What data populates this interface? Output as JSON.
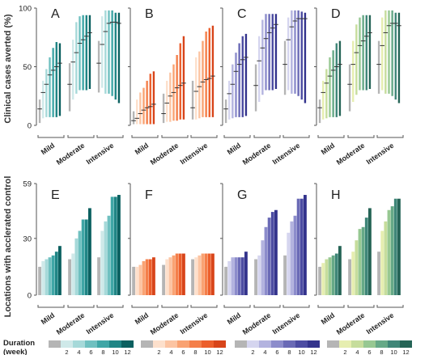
{
  "y_axis_labels": {
    "top": "Clinical cases averted (%)",
    "bottom": "Locations with acclerated control"
  },
  "top_ticks": [
    "0",
    "50",
    "100"
  ],
  "bottom_ticks": [
    "0",
    "30",
    "59"
  ],
  "groups": [
    "Mild",
    "Moderate",
    "Intensive"
  ],
  "legend": {
    "title": "Duration\n(week)",
    "durations": [
      "2",
      "4",
      "6",
      "8",
      "10",
      "12"
    ]
  },
  "palettes": {
    "A": [
      "#b5b5b5",
      "#cfe9e9",
      "#a6d9d9",
      "#6fc0c0",
      "#3fa6a6",
      "#1f8585",
      "#0b6060"
    ],
    "B": [
      "#b5b5b5",
      "#fde0cc",
      "#fcc4a2",
      "#f9a272",
      "#f47f4a",
      "#ec5f2c",
      "#d8451a"
    ],
    "C": [
      "#b5b5b5",
      "#d5d5ef",
      "#b3b3df",
      "#8c8ccb",
      "#6a6ab6",
      "#4c4ca2",
      "#33338c"
    ],
    "D": [
      "#b5b5b5",
      "#e6eeb0",
      "#c6dd9c",
      "#97c892",
      "#66a987",
      "#3f8678",
      "#256456"
    ]
  },
  "chart_data": [
    {
      "panel": "A",
      "type": "errorbar",
      "ylim": [
        0,
        100
      ],
      "categories": [
        "Mild",
        "Moderate",
        "Intensive"
      ],
      "series": [
        {
          "name": "0",
          "mid": [
            14,
            35,
            53
          ],
          "low": [
            2,
            12,
            28
          ],
          "high": [
            22,
            53,
            72
          ]
        },
        {
          "name": "2",
          "mid": [
            28,
            54,
            69
          ],
          "low": [
            6,
            22,
            32
          ],
          "high": [
            38,
            73,
            93
          ]
        },
        {
          "name": "4",
          "mid": [
            35,
            62,
            80
          ],
          "low": [
            7,
            27,
            27
          ],
          "high": [
            48,
            88,
            98
          ]
        },
        {
          "name": "6",
          "mid": [
            43,
            70,
            87
          ],
          "low": [
            7,
            30,
            27
          ],
          "high": [
            58,
            93,
            98
          ]
        },
        {
          "name": "8",
          "mid": [
            47,
            73,
            88
          ],
          "low": [
            7,
            30,
            25
          ],
          "high": [
            66,
            94,
            98
          ]
        },
        {
          "name": "10",
          "mid": [
            50,
            76,
            88
          ],
          "low": [
            7,
            30,
            22
          ],
          "high": [
            71,
            94,
            96
          ]
        },
        {
          "name": "12",
          "mid": [
            53,
            79,
            87
          ],
          "low": [
            8,
            31,
            19
          ],
          "high": [
            70,
            94,
            96
          ]
        }
      ]
    },
    {
      "panel": "B",
      "type": "errorbar",
      "ylim": [
        0,
        100
      ],
      "categories": [
        "Mild",
        "Moderate",
        "Intensive"
      ],
      "series": [
        {
          "name": "0",
          "mid": [
            4,
            10,
            15
          ],
          "low": [
            1,
            2,
            5
          ],
          "high": [
            12,
            27,
            38
          ]
        },
        {
          "name": "2",
          "mid": [
            6,
            19,
            29
          ],
          "low": [
            1,
            3,
            5
          ],
          "high": [
            22,
            38,
            58
          ]
        },
        {
          "name": "4",
          "mid": [
            10,
            25,
            33
          ],
          "low": [
            1,
            3,
            6
          ],
          "high": [
            28,
            45,
            63
          ]
        },
        {
          "name": "6",
          "mid": [
            13,
            28,
            37
          ],
          "low": [
            1,
            4,
            7
          ],
          "high": [
            32,
            52,
            72
          ]
        },
        {
          "name": "8",
          "mid": [
            15,
            32,
            39
          ],
          "low": [
            1,
            4,
            7
          ],
          "high": [
            38,
            60,
            80
          ]
        },
        {
          "name": "10",
          "mid": [
            16,
            34,
            40
          ],
          "low": [
            1,
            5,
            7
          ],
          "high": [
            44,
            70,
            83
          ]
        },
        {
          "name": "12",
          "mid": [
            18,
            36,
            42
          ],
          "low": [
            1,
            5,
            7
          ],
          "high": [
            46,
            76,
            85
          ]
        }
      ]
    },
    {
      "panel": "C",
      "type": "errorbar",
      "ylim": [
        0,
        100
      ],
      "categories": [
        "Mild",
        "Moderate",
        "Intensive"
      ],
      "series": [
        {
          "name": "0",
          "mid": [
            14,
            34,
            52
          ],
          "low": [
            2,
            12,
            26
          ],
          "high": [
            22,
            52,
            72
          ]
        },
        {
          "name": "2",
          "mid": [
            27,
            55,
            73
          ],
          "low": [
            5,
            20,
            30
          ],
          "high": [
            38,
            76,
            92
          ]
        },
        {
          "name": "4",
          "mid": [
            35,
            66,
            84
          ],
          "low": [
            6,
            26,
            27
          ],
          "high": [
            52,
            90,
            98
          ]
        },
        {
          "name": "6",
          "mid": [
            46,
            74,
            89
          ],
          "low": [
            7,
            30,
            27
          ],
          "high": [
            62,
            95,
            98
          ]
        },
        {
          "name": "8",
          "mid": [
            52,
            79,
            91
          ],
          "low": [
            7,
            30,
            25
          ],
          "high": [
            70,
            95,
            98
          ]
        },
        {
          "name": "10",
          "mid": [
            56,
            83,
            91
          ],
          "low": [
            7,
            30,
            22
          ],
          "high": [
            76,
            95,
            97
          ]
        },
        {
          "name": "12",
          "mid": [
            58,
            86,
            91
          ],
          "low": [
            8,
            31,
            19
          ],
          "high": [
            78,
            95,
            96
          ]
        }
      ]
    },
    {
      "panel": "D",
      "type": "errorbar",
      "ylim": [
        0,
        100
      ],
      "categories": [
        "Mild",
        "Moderate",
        "Intensive"
      ],
      "series": [
        {
          "name": "0",
          "mid": [
            15,
            35,
            52
          ],
          "low": [
            2,
            12,
            27
          ],
          "high": [
            22,
            52,
            72
          ]
        },
        {
          "name": "2",
          "mid": [
            28,
            52,
            68
          ],
          "low": [
            5,
            20,
            30
          ],
          "high": [
            38,
            72,
            92
          ]
        },
        {
          "name": "4",
          "mid": [
            36,
            62,
            79
          ],
          "low": [
            6,
            26,
            27
          ],
          "high": [
            48,
            86,
            98
          ]
        },
        {
          "name": "6",
          "mid": [
            42,
            68,
            85
          ],
          "low": [
            7,
            30,
            27
          ],
          "high": [
            58,
            92,
            98
          ]
        },
        {
          "name": "8",
          "mid": [
            47,
            72,
            87
          ],
          "low": [
            7,
            30,
            25
          ],
          "high": [
            64,
            94,
            98
          ]
        },
        {
          "name": "10",
          "mid": [
            50,
            76,
            87
          ],
          "low": [
            7,
            30,
            22
          ],
          "high": [
            70,
            94,
            96
          ]
        },
        {
          "name": "12",
          "mid": [
            52,
            79,
            85
          ],
          "low": [
            8,
            31,
            19
          ],
          "high": [
            72,
            94,
            96
          ]
        }
      ]
    },
    {
      "panel": "E",
      "type": "bar",
      "ylim": [
        0,
        59
      ],
      "categories": [
        "Mild",
        "Moderate",
        "Intensive"
      ],
      "series": [
        {
          "name": "0",
          "values": [
            15,
            19,
            20
          ]
        },
        {
          "name": "2",
          "values": [
            18,
            22,
            34
          ]
        },
        {
          "name": "4",
          "values": [
            19,
            30,
            39
          ]
        },
        {
          "name": "6",
          "values": [
            20,
            34,
            42
          ]
        },
        {
          "name": "8",
          "values": [
            21,
            40,
            52
          ]
        },
        {
          "name": "10",
          "values": [
            23,
            40,
            52
          ]
        },
        {
          "name": "12",
          "values": [
            26,
            46,
            53
          ]
        }
      ]
    },
    {
      "panel": "F",
      "type": "bar",
      "ylim": [
        0,
        59
      ],
      "categories": [
        "Mild",
        "Moderate",
        "Intensive"
      ],
      "series": [
        {
          "name": "0",
          "values": [
            15,
            16,
            19
          ]
        },
        {
          "name": "2",
          "values": [
            15,
            19,
            20
          ]
        },
        {
          "name": "4",
          "values": [
            16,
            20,
            21
          ]
        },
        {
          "name": "6",
          "values": [
            18,
            21,
            22
          ]
        },
        {
          "name": "8",
          "values": [
            19,
            22,
            22
          ]
        },
        {
          "name": "10",
          "values": [
            19,
            22,
            22
          ]
        },
        {
          "name": "12",
          "values": [
            20,
            22,
            22
          ]
        }
      ]
    },
    {
      "panel": "G",
      "type": "bar",
      "ylim": [
        0,
        59
      ],
      "categories": [
        "Mild",
        "Moderate",
        "Intensive"
      ],
      "series": [
        {
          "name": "0",
          "values": [
            15,
            19,
            21
          ]
        },
        {
          "name": "2",
          "values": [
            18,
            21,
            33
          ]
        },
        {
          "name": "4",
          "values": [
            20,
            29,
            39
          ]
        },
        {
          "name": "6",
          "values": [
            20,
            36,
            42
          ]
        },
        {
          "name": "8",
          "values": [
            20,
            41,
            51
          ]
        },
        {
          "name": "10",
          "values": [
            20,
            44,
            51
          ]
        },
        {
          "name": "12",
          "values": [
            23,
            45,
            53
          ]
        }
      ]
    },
    {
      "panel": "H",
      "type": "bar",
      "ylim": [
        0,
        59
      ],
      "categories": [
        "Mild",
        "Moderate",
        "Intensive"
      ],
      "series": [
        {
          "name": "0",
          "values": [
            15,
            19,
            23
          ]
        },
        {
          "name": "2",
          "values": [
            17,
            23,
            34
          ]
        },
        {
          "name": "4",
          "values": [
            19,
            29,
            39
          ]
        },
        {
          "name": "6",
          "values": [
            20,
            35,
            45
          ]
        },
        {
          "name": "8",
          "values": [
            21,
            36,
            47
          ]
        },
        {
          "name": "10",
          "values": [
            22,
            41,
            51
          ]
        },
        {
          "name": "12",
          "values": [
            26,
            46,
            51
          ]
        }
      ]
    }
  ]
}
